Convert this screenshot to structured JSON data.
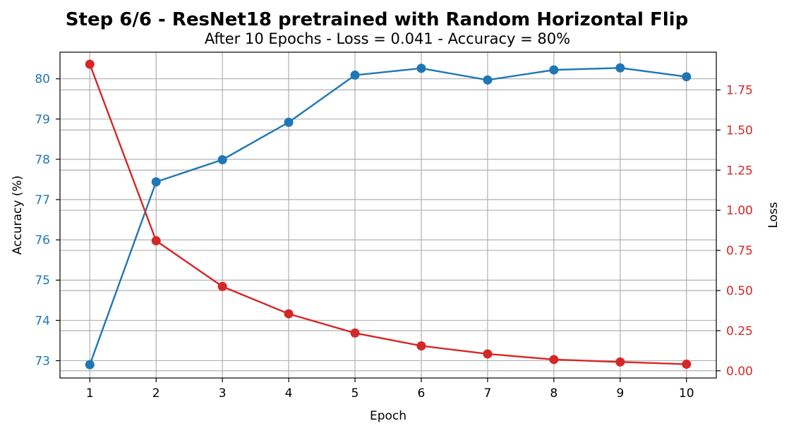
{
  "chart_data": {
    "type": "line",
    "title": "Step 6/6 - ResNet18 pretrained with Random Horizontal Flip",
    "subtitle": "After 10 Epochs - Loss = 0.041 - Accuracy = 80%",
    "xlabel": "Epoch",
    "ylabel_left": "Accuracy (%)",
    "ylabel_right": "Loss",
    "x": [
      1,
      2,
      3,
      4,
      5,
      6,
      7,
      8,
      9,
      10
    ],
    "x_ticks": [
      "1",
      "2",
      "3",
      "4",
      "5",
      "6",
      "7",
      "8",
      "9",
      "10"
    ],
    "left_ticks": [
      "73",
      "74",
      "75",
      "76",
      "77",
      "78",
      "79",
      "80"
    ],
    "left_tick_values": [
      73,
      74,
      75,
      76,
      77,
      78,
      79,
      80
    ],
    "right_ticks": [
      "0.00",
      "0.25",
      "0.50",
      "0.75",
      "1.00",
      "1.25",
      "1.50",
      "1.75"
    ],
    "right_tick_values": [
      0.0,
      0.25,
      0.5,
      0.75,
      1.0,
      1.25,
      1.5,
      1.75
    ],
    "xlim": [
      0.55,
      10.45
    ],
    "ylim_left": [
      72.57,
      80.66
    ],
    "ylim_right": [
      -0.045,
      1.985
    ],
    "grid": true,
    "series": [
      {
        "axis": "left",
        "color": "#1f77b4",
        "values": [
          72.9,
          77.44,
          77.99,
          78.92,
          80.09,
          80.26,
          79.97,
          80.22,
          80.27,
          80.05
        ]
      },
      {
        "axis": "right",
        "color": "#d62728",
        "values": [
          1.91,
          0.81,
          0.525,
          0.355,
          0.235,
          0.155,
          0.105,
          0.07,
          0.055,
          0.041
        ]
      }
    ]
  }
}
